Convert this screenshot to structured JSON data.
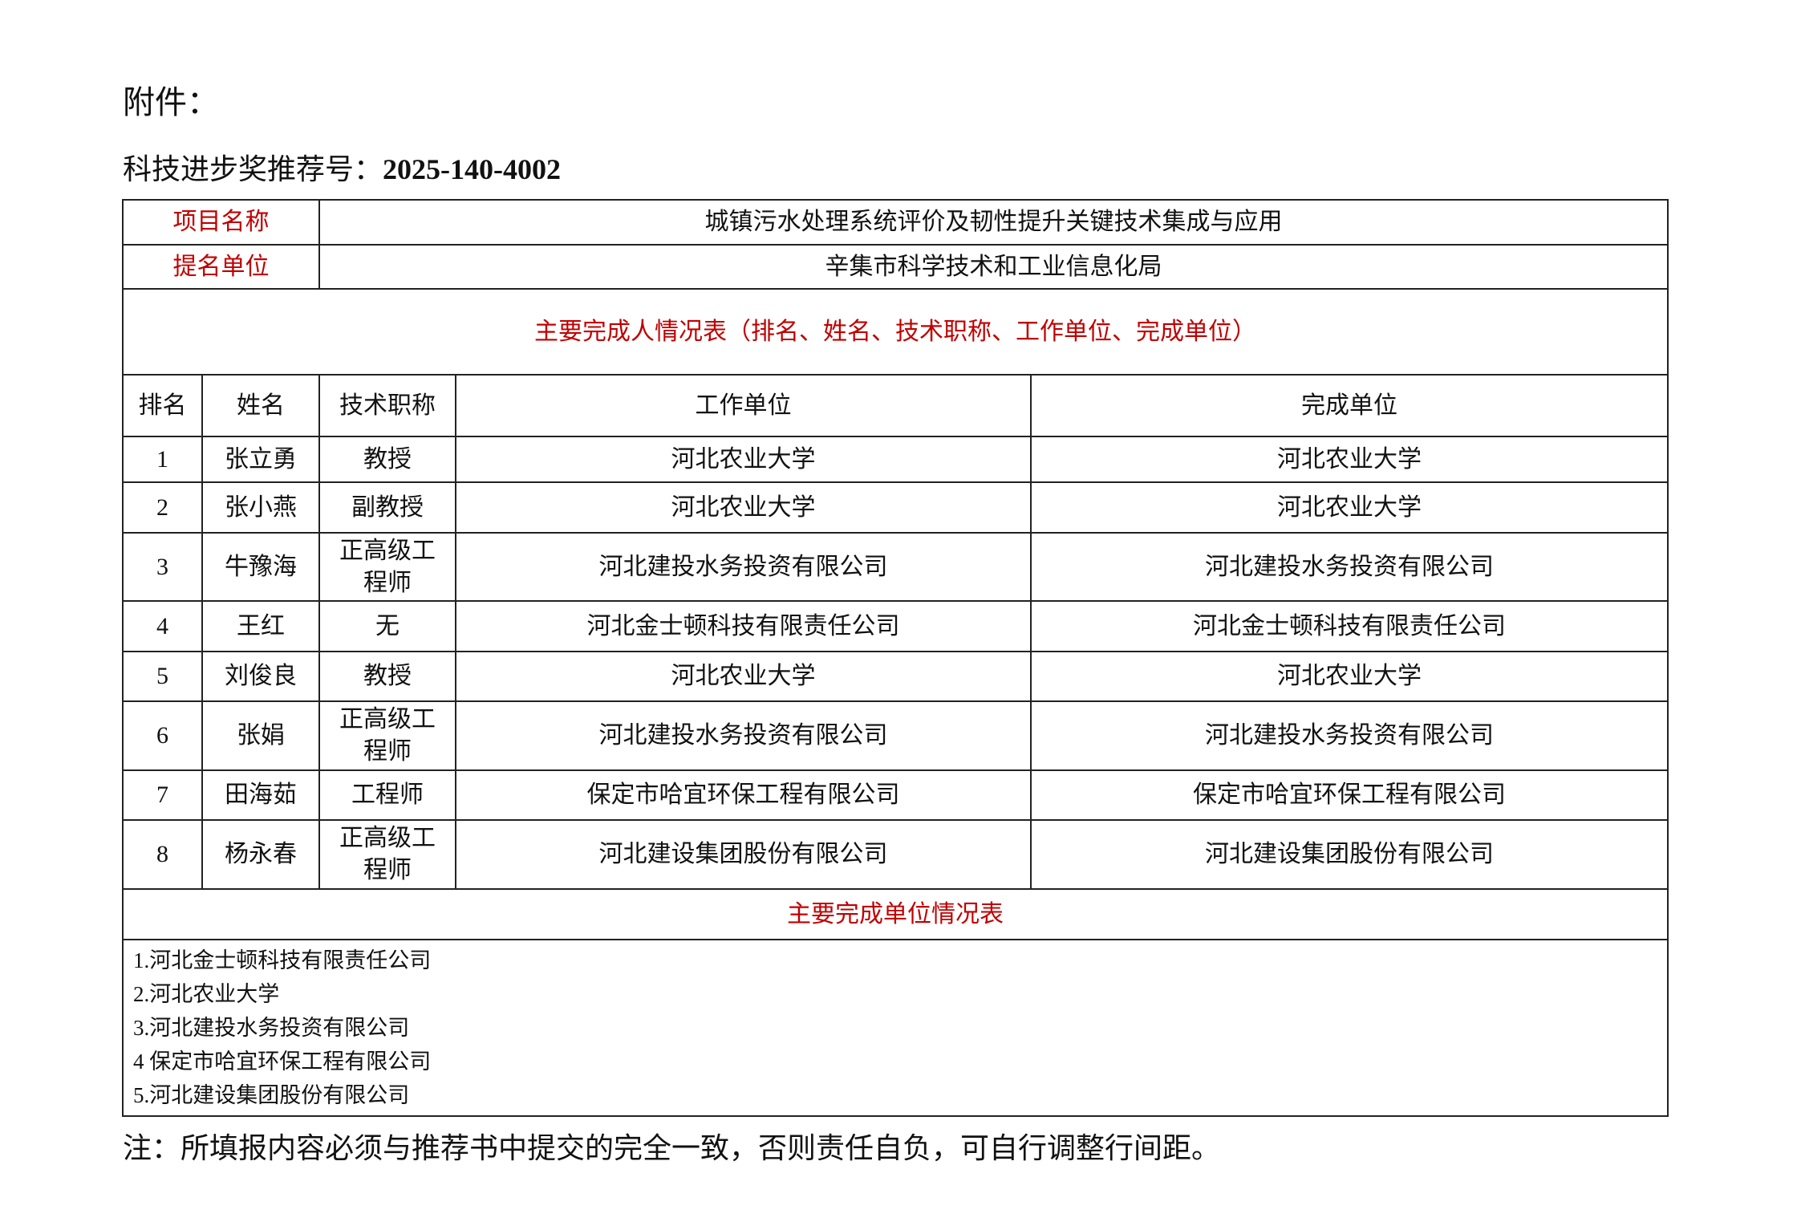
{
  "attachment_label": "附件：",
  "recommendation": {
    "label": "科技进步奖推荐号：",
    "number": "2025-140-4002"
  },
  "project": {
    "label": "项目名称",
    "value": "城镇污水处理系统评价及韧性提升关键技术集成与应用"
  },
  "nominator": {
    "label": "提名单位",
    "value": "辛集市科学技术和工业信息化局"
  },
  "people_section_title": "主要完成人情况表（排名、姓名、技术职称、工作单位、完成单位）",
  "columns": [
    "排名",
    "姓名",
    "技术职称",
    "工作单位",
    "完成单位"
  ],
  "people": [
    {
      "rank": "1",
      "name": "张立勇",
      "title": "教授",
      "work": "河北农业大学",
      "unit": "河北农业大学"
    },
    {
      "rank": "2",
      "name": "张小燕",
      "title": "副教授",
      "work": "河北农业大学",
      "unit": "河北农业大学"
    },
    {
      "rank": "3",
      "name": "牛豫海",
      "title": "正高级工程师",
      "work": "河北建投水务投资有限公司",
      "unit": "河北建投水务投资有限公司"
    },
    {
      "rank": "4",
      "name": "王红",
      "title": "无",
      "work": "河北金士顿科技有限责任公司",
      "unit": "河北金士顿科技有限责任公司"
    },
    {
      "rank": "5",
      "name": "刘俊良",
      "title": "教授",
      "work": "河北农业大学",
      "unit": "河北农业大学"
    },
    {
      "rank": "6",
      "name": "张娟",
      "title": "正高级工程师",
      "work": "河北建投水务投资有限公司",
      "unit": "河北建投水务投资有限公司"
    },
    {
      "rank": "7",
      "name": "田海茹",
      "title": "工程师",
      "work": "保定市哈宜环保工程有限公司",
      "unit": "保定市哈宜环保工程有限公司"
    },
    {
      "rank": "8",
      "name": "杨永春",
      "title": "正高级工程师",
      "work": "河北建设集团股份有限公司",
      "unit": "河北建设集团股份有限公司"
    }
  ],
  "units_section_title": "主要完成单位情况表",
  "units": [
    "1.河北金士顿科技有限责任公司",
    "2.河北农业大学",
    "3.河北建投水务投资有限公司",
    "4 保定市哈宜环保工程有限公司",
    "5.河北建设集团股份有限公司"
  ],
  "note": "注：所填报内容必须与推荐书中提交的完全一致，否则责任自负，可自行调整行间距。",
  "colors": {
    "label_red": "#c00000",
    "text": "#111111"
  }
}
